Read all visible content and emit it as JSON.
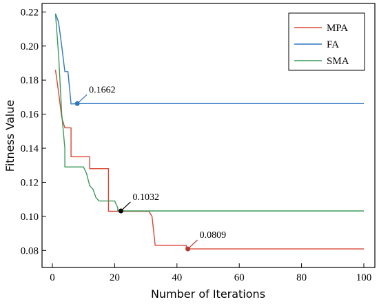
{
  "chart_data": {
    "type": "line",
    "title": "",
    "xlabel": "Number of Iterations",
    "ylabel": "Fitness Value",
    "xlim": [
      0,
      100
    ],
    "ylim": [
      0.07,
      0.225
    ],
    "xticks": [
      0,
      20,
      40,
      60,
      80,
      100
    ],
    "yticks": [
      0.08,
      0.1,
      0.12,
      0.14,
      0.16,
      0.18,
      0.2,
      0.22
    ],
    "ytick_labels": [
      "0.08",
      "0.10",
      "0.12",
      "0.14",
      "0.16",
      "0.18",
      "0.20",
      "0.22"
    ],
    "grid": false,
    "legend_position": "top-right",
    "series": [
      {
        "name": "MPA",
        "color": "#d94535",
        "points": [
          [
            1,
            0.186
          ],
          [
            2,
            0.173
          ],
          [
            3,
            0.158
          ],
          [
            4,
            0.152
          ],
          [
            6,
            0.152
          ],
          [
            6,
            0.135
          ],
          [
            12,
            0.135
          ],
          [
            12,
            0.128
          ],
          [
            18,
            0.128
          ],
          [
            18,
            0.103
          ],
          [
            31,
            0.103
          ],
          [
            32,
            0.1
          ],
          [
            33,
            0.083
          ],
          [
            43,
            0.083
          ],
          [
            43,
            0.0809
          ],
          [
            100,
            0.0809
          ]
        ]
      },
      {
        "name": "FA",
        "color": "#2f75c2",
        "points": [
          [
            1,
            0.219
          ],
          [
            2,
            0.214
          ],
          [
            3,
            0.2
          ],
          [
            4,
            0.185
          ],
          [
            5,
            0.185
          ],
          [
            6,
            0.166
          ],
          [
            8,
            0.1662
          ],
          [
            100,
            0.1662
          ]
        ]
      },
      {
        "name": "SMA",
        "color": "#3b9a5a",
        "points": [
          [
            1,
            0.219
          ],
          [
            2,
            0.195
          ],
          [
            3,
            0.16
          ],
          [
            4,
            0.14
          ],
          [
            4,
            0.129
          ],
          [
            10,
            0.129
          ],
          [
            11,
            0.125
          ],
          [
            12,
            0.118
          ],
          [
            13,
            0.116
          ],
          [
            14,
            0.111
          ],
          [
            15,
            0.109
          ],
          [
            20,
            0.109
          ],
          [
            21,
            0.105
          ],
          [
            21,
            0.1032
          ],
          [
            100,
            0.1032
          ]
        ]
      }
    ],
    "annotations": [
      {
        "label": "0.1662",
        "x": 8,
        "y": 0.1662,
        "color": "#2f75c2"
      },
      {
        "label": "0.1032",
        "x": 22,
        "y": 0.1032,
        "color": "#000000"
      },
      {
        "label": "0.0809",
        "x": 43.5,
        "y": 0.0809,
        "color": "#b03a2e"
      }
    ]
  }
}
